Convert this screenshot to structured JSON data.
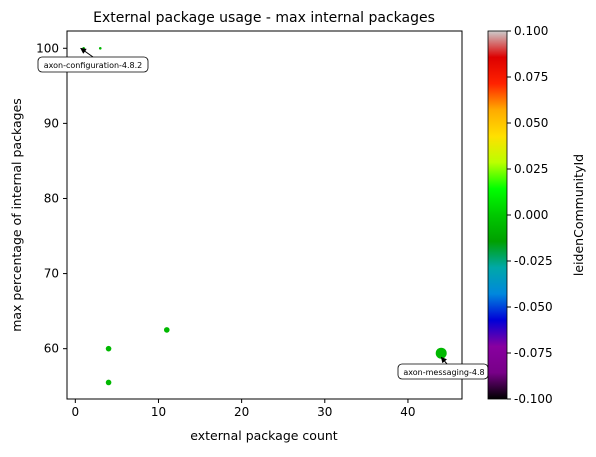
{
  "chart_data": {
    "type": "scatter",
    "title": "External package usage - max internal packages",
    "xlabel": "external package count",
    "ylabel": "max percentage of internal packages",
    "xlim": [
      -1,
      46.5
    ],
    "ylim": [
      53.3,
      102.3
    ],
    "x_ticks": [
      0,
      10,
      20,
      30,
      40
    ],
    "y_ticks": [
      60,
      70,
      80,
      90,
      100
    ],
    "grid": false,
    "color_encoding": "leidenCommunityId",
    "point_color": "#00b800",
    "points": [
      {
        "x": 1,
        "y": 100,
        "size": "small"
      },
      {
        "x": 3,
        "y": 100,
        "size": "small"
      },
      {
        "x": 4,
        "y": 60,
        "size": "medium"
      },
      {
        "x": 4,
        "y": 55.5,
        "size": "medium"
      },
      {
        "x": 11,
        "y": 62.5,
        "size": "medium"
      },
      {
        "x": 44,
        "y": 59.4,
        "size": "large"
      }
    ],
    "annotations": [
      {
        "text": "axon-configuration-4.8.2",
        "point": {
          "x": 1,
          "y": 100
        }
      },
      {
        "text": "axon-messaging-4.8",
        "point": {
          "x": 44,
          "y": 59.4
        }
      }
    ],
    "colorbar": {
      "label": "leidenCommunityId",
      "range": [
        -0.1,
        0.1
      ],
      "ticks": [
        "-0.100",
        "-0.075",
        "-0.050",
        "-0.025",
        "0.000",
        "0.025",
        "0.050",
        "0.075",
        "0.100"
      ],
      "colormap": "nipy_spectral",
      "colors": [
        "#000000",
        "#780088",
        "#8800a0",
        "#0000d8",
        "#0088dd",
        "#00a8a8",
        "#00a000",
        "#00c800",
        "#00ff00",
        "#bbff00",
        "#ffe000",
        "#ffaa00",
        "#ff2200",
        "#dd0000",
        "#cccccc"
      ]
    }
  }
}
